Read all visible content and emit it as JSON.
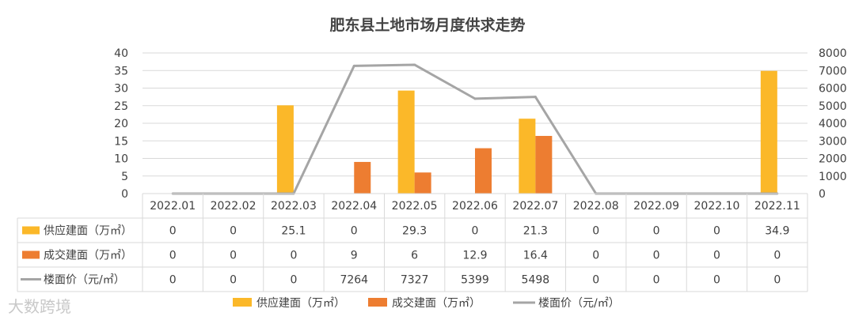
{
  "chart_data": {
    "type": "bar",
    "title": "肥东县土地市场月度供求走势",
    "categories": [
      "2022.01",
      "2022.02",
      "2022.03",
      "2022.04",
      "2022.05",
      "2022.06",
      "2022.07",
      "2022.08",
      "2022.09",
      "2022.10",
      "2022.11"
    ],
    "series": [
      {
        "name": "供应建面（万㎡）",
        "type": "bar",
        "axis": "left",
        "color": "#FBB829",
        "values": [
          0,
          0,
          25.1,
          0,
          29.3,
          0,
          21.3,
          0,
          0,
          0,
          34.9
        ]
      },
      {
        "name": "成交建面（万㎡）",
        "type": "bar",
        "axis": "left",
        "color": "#ED7D31",
        "values": [
          0,
          0,
          0,
          9,
          6,
          12.9,
          16.4,
          0,
          0,
          0,
          0
        ]
      },
      {
        "name": "楼面价（元/㎡）",
        "type": "line",
        "axis": "right",
        "color": "#A5A5A5",
        "values": [
          0,
          0,
          0,
          7264,
          7327,
          5399,
          5498,
          0,
          0,
          0,
          0
        ]
      }
    ],
    "y_left": {
      "min": 0,
      "max": 40,
      "ticks": [
        0,
        5,
        10,
        15,
        20,
        25,
        30,
        35,
        40
      ]
    },
    "y_right": {
      "min": 0,
      "max": 8000,
      "ticks": [
        0,
        1000,
        2000,
        3000,
        4000,
        5000,
        6000,
        7000,
        8000
      ]
    },
    "grid": true,
    "legend_position": "bottom",
    "data_table": true
  },
  "watermark": "大数跨境"
}
